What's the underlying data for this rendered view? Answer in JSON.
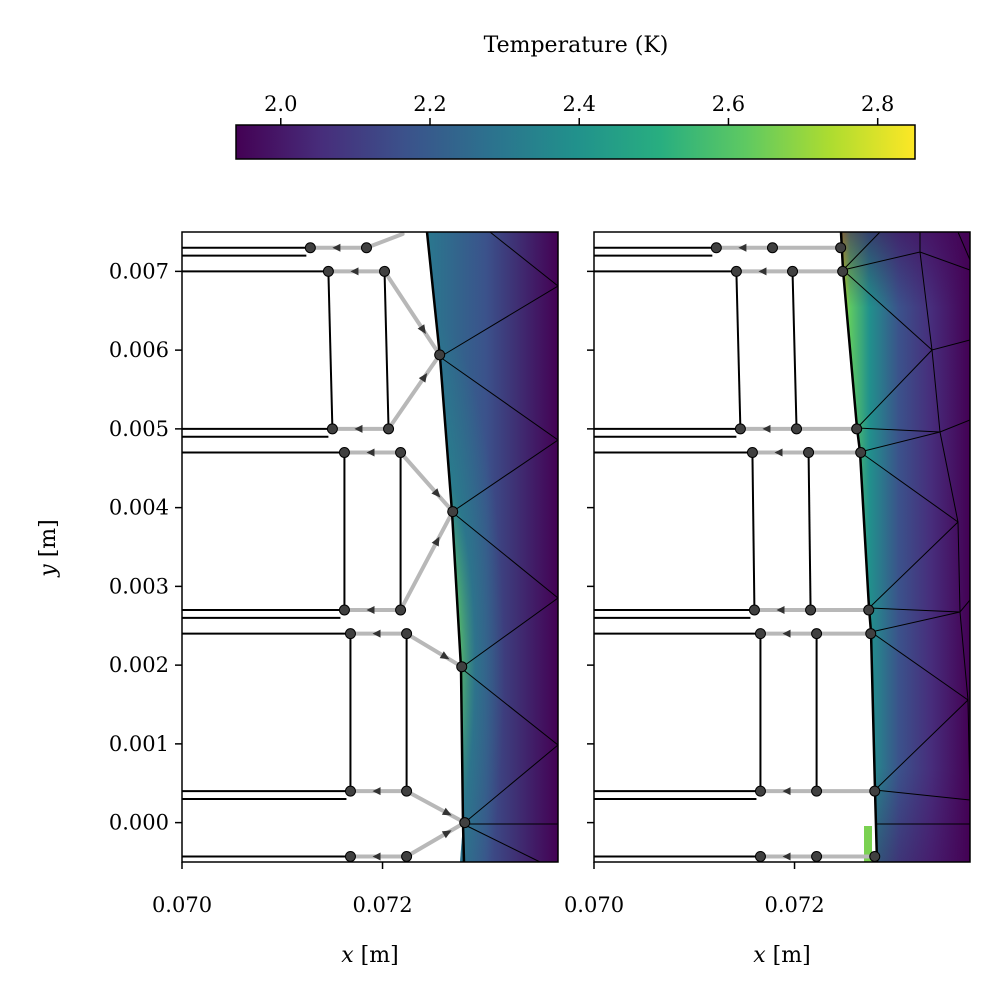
{
  "chart_data": [
    {
      "type": "heatmap",
      "title": "",
      "xlabel": "x [m]",
      "ylabel": "y [m]",
      "xlim": [
        0.07,
        0.07375
      ],
      "ylim": [
        -0.0005,
        0.0075
      ],
      "xticks": [
        0.07,
        0.072
      ],
      "xtick_labels": [
        "0.070",
        "0.072"
      ],
      "yticks": [
        0.0,
        0.001,
        0.002,
        0.003,
        0.004,
        0.005,
        0.006,
        0.007
      ],
      "ytick_labels": [
        "0.000",
        "0.001",
        "0.002",
        "0.003",
        "0.004",
        "0.005",
        "0.006",
        "0.007"
      ],
      "interface_points": [
        [
          0.07264,
          0.00775
        ],
        [
          0.07257,
          0.00594
        ],
        [
          0.0727,
          0.00395
        ],
        [
          0.07279,
          0.00198
        ],
        [
          0.07282,
          0.0
        ],
        [
          0.07283,
          -0.0005
        ]
      ],
      "particle_rows": [
        {
          "y": 0.0073,
          "xs": [
            0.07128,
            0.07184
          ]
        },
        {
          "y": 0.007,
          "xs": [
            0.07146,
            0.07202
          ]
        },
        {
          "y": 0.005,
          "xs": [
            0.0715,
            0.07206
          ]
        },
        {
          "y": 0.0047,
          "xs": [
            0.07162,
            0.07218
          ]
        },
        {
          "y": 0.0027,
          "xs": [
            0.07162,
            0.07218
          ]
        },
        {
          "y": 0.0024,
          "xs": [
            0.07168,
            0.07224
          ]
        },
        {
          "y": 0.0004,
          "xs": [
            0.07168,
            0.07224
          ]
        },
        {
          "y": -0.00043,
          "xs": [
            0.07168,
            0.07224
          ]
        }
      ],
      "max_temperature_location": [
        0.07279,
        0.00198
      ]
    },
    {
      "type": "heatmap",
      "title": "",
      "xlabel": "x [m]",
      "ylabel": "",
      "xlim": [
        0.07,
        0.07375
      ],
      "ylim": [
        -0.0005,
        0.0075
      ],
      "xticks": [
        0.07,
        0.072
      ],
      "xtick_labels": [
        "0.070",
        "0.072"
      ],
      "yticks": [
        0.0,
        0.001,
        0.002,
        0.003,
        0.004,
        0.005,
        0.006,
        0.007
      ],
      "ytick_labels": [],
      "interface_points": [
        [
          0.07245,
          0.0075
        ],
        [
          0.07248,
          0.007
        ],
        [
          0.07262,
          0.005
        ],
        [
          0.07266,
          0.0047
        ],
        [
          0.07274,
          0.0027
        ],
        [
          0.07276,
          0.0024
        ],
        [
          0.0728,
          0.0004
        ],
        [
          0.07281,
          -0.0005
        ]
      ],
      "particle_rows": [
        {
          "y": 0.0073,
          "xs": [
            0.07122,
            0.07178,
            0.07246
          ]
        },
        {
          "y": 0.007,
          "xs": [
            0.07142,
            0.07198,
            0.07248
          ]
        },
        {
          "y": 0.005,
          "xs": [
            0.07146,
            0.07202,
            0.07262
          ]
        },
        {
          "y": 0.0047,
          "xs": [
            0.07158,
            0.07214,
            0.07266
          ]
        },
        {
          "y": 0.0027,
          "xs": [
            0.0716,
            0.07216,
            0.07274
          ]
        },
        {
          "y": 0.0024,
          "xs": [
            0.07166,
            0.07222,
            0.07276
          ]
        },
        {
          "y": 0.0004,
          "xs": [
            0.07166,
            0.07222,
            0.0728
          ]
        },
        {
          "y": -0.00043,
          "xs": [
            0.07166,
            0.07222,
            0.0728
          ]
        }
      ],
      "max_temperature_location": [
        0.07262,
        0.0047
      ]
    }
  ],
  "colorbar": {
    "label": "Temperature (K)",
    "min": 1.94,
    "max": 2.85,
    "ticks": [
      2.0,
      2.2,
      2.4,
      2.6,
      2.8
    ],
    "tick_labels": [
      "2.0",
      "2.2",
      "2.4",
      "2.6",
      "2.8"
    ],
    "colormap": "viridis"
  },
  "colors": {
    "fiber_line": "#000000",
    "particle_path": "#b8b8b8",
    "marker": "#404040",
    "mesh_line": "#000000"
  }
}
